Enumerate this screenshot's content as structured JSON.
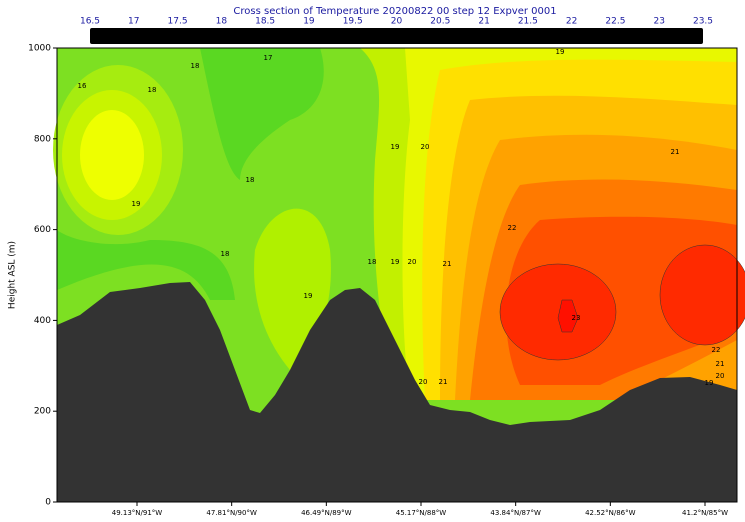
{
  "chart_data": {
    "type": "contour",
    "title": "Cross section of Temperature 20200822 00 step 12 Expver 0001",
    "ylabel": "Height ASL (m)",
    "ylim": [
      0,
      1000
    ],
    "yticks": [
      0,
      200,
      400,
      600,
      800,
      1000
    ],
    "categories": [
      "49.13°N/91°W",
      "47.81°N/90°W",
      "46.49°N/89°W",
      "45.17°N/88°W",
      "43.84°N/87°W",
      "42.52°N/86°W",
      "41.2°N/85°W"
    ],
    "colorbar": {
      "lim": [
        16.5,
        23.5
      ],
      "ticks": [
        16.5,
        17,
        17.5,
        18,
        18.5,
        19,
        19.5,
        20,
        20.5,
        21,
        21.5,
        22,
        22.5,
        23,
        23.5
      ],
      "color": "#000000"
    },
    "contour_labels": [
      16,
      18,
      19,
      18,
      17,
      18,
      18,
      19,
      18,
      19,
      19,
      20,
      20,
      21,
      22,
      23,
      21,
      19,
      22,
      21,
      20,
      19,
      20,
      21
    ]
  }
}
